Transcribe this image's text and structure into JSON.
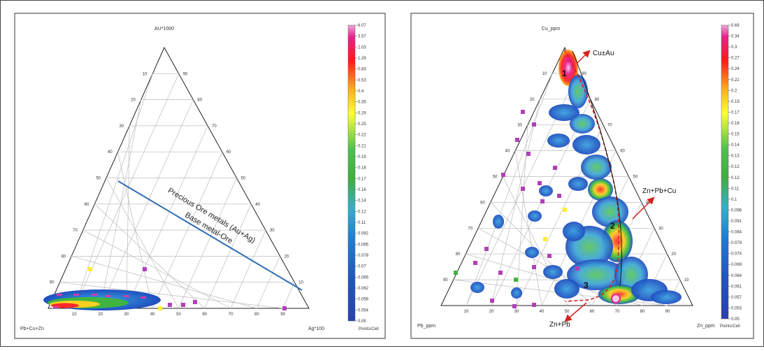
{
  "chart_data": [
    {
      "type": "ternary-density",
      "title": "",
      "vertices": {
        "top": "AU*1000",
        "left": "Pb+Cu+Zn",
        "right": "Ag*100"
      },
      "tick_labels": [
        "10",
        "20",
        "30",
        "40",
        "50",
        "60",
        "70",
        "80",
        "90"
      ],
      "colorbar": {
        "labels": [
          "6.07",
          "3.57",
          "2.03",
          "1.29",
          "0.83",
          "0.53",
          "0.4",
          "0.35",
          "0.29",
          "0.25",
          "0.22",
          "0.21",
          "0.19",
          "0.18",
          "0.17",
          "0.16",
          "0.14",
          "0.12",
          "0.11",
          "0.092",
          "0.085",
          "0.078",
          "0.07",
          "0.065",
          "0.062",
          "0.058",
          "0.054",
          "0.05"
        ],
        "unit": "Points/Cell"
      },
      "annotations": [
        {
          "text": "Precious Ore metals (Au+Ag)"
        },
        {
          "text": "Base metal-Ore"
        }
      ],
      "divider_line": {
        "left_side_value": 50,
        "right_side_value": 10
      },
      "point_count": 5
    },
    {
      "type": "ternary-density",
      "title": "",
      "vertices": {
        "top": "Cu_ppm",
        "left": "Pb_ppm",
        "right": "Zn_ppm"
      },
      "tick_labels": [
        "10",
        "20",
        "30",
        "40",
        "50",
        "60",
        "70",
        "80",
        "90"
      ],
      "colorbar": {
        "labels": [
          "0.69",
          "0.34",
          "0.3",
          "0.27",
          "0.24",
          "0.22",
          "0.2",
          "0.19",
          "0.17",
          "0.16",
          "0.15",
          "0.14",
          "0.13",
          "0.12",
          "0.12",
          "0.11",
          "0.1",
          "0.096",
          "0.091",
          "0.084",
          "0.079",
          "0.074",
          "0.069",
          "0.064",
          "0.061",
          "0.057",
          "0.053",
          "0.05"
        ],
        "unit": "Points/Cell"
      },
      "annotations": [
        {
          "text": "Cu±Au"
        },
        {
          "text": "Zn+Pb+Cu"
        },
        {
          "text": "Zn+Pb"
        },
        {
          "text": "1"
        },
        {
          "text": "2"
        },
        {
          "text": "3"
        }
      ]
    }
  ]
}
